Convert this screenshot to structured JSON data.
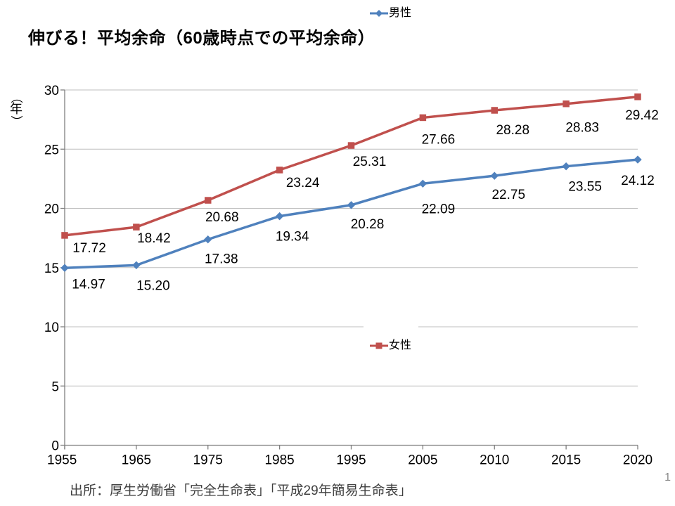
{
  "slide": {
    "title": "伸びる！平均余命（60歳時点での平均余命）",
    "source": "出所：厚生労働省「完全生命表」「平成29年簡易生命表」",
    "page_number": "1"
  },
  "chart_data": {
    "type": "line",
    "title": "伸びる！平均余命（60歳時点での平均余命）",
    "ylabel": "（年）",
    "xlabel": "",
    "categories": [
      "1955",
      "1965",
      "1975",
      "1985",
      "1995",
      "2005",
      "2010",
      "2015",
      "2020"
    ],
    "series": [
      {
        "key": "male",
        "name": "男性",
        "color": "#4F81BD",
        "marker": "diamond",
        "values": [
          14.97,
          15.2,
          17.38,
          19.34,
          20.28,
          22.09,
          22.75,
          23.55,
          24.12
        ]
      },
      {
        "key": "female",
        "name": "女性",
        "color": "#C0504D",
        "marker": "square",
        "values": [
          17.72,
          18.42,
          20.68,
          23.24,
          25.31,
          27.66,
          28.28,
          28.83,
          29.42
        ]
      }
    ],
    "ylim": [
      0,
      30
    ],
    "y_ticks": [
      0,
      5,
      10,
      15,
      20,
      25,
      30
    ],
    "grid": true,
    "data_labels": true,
    "data_label_decimals": 2,
    "legend_position": "center",
    "gridline_color": "#BFBFBF",
    "axis_color": "#808080",
    "label_color": "#000000"
  }
}
